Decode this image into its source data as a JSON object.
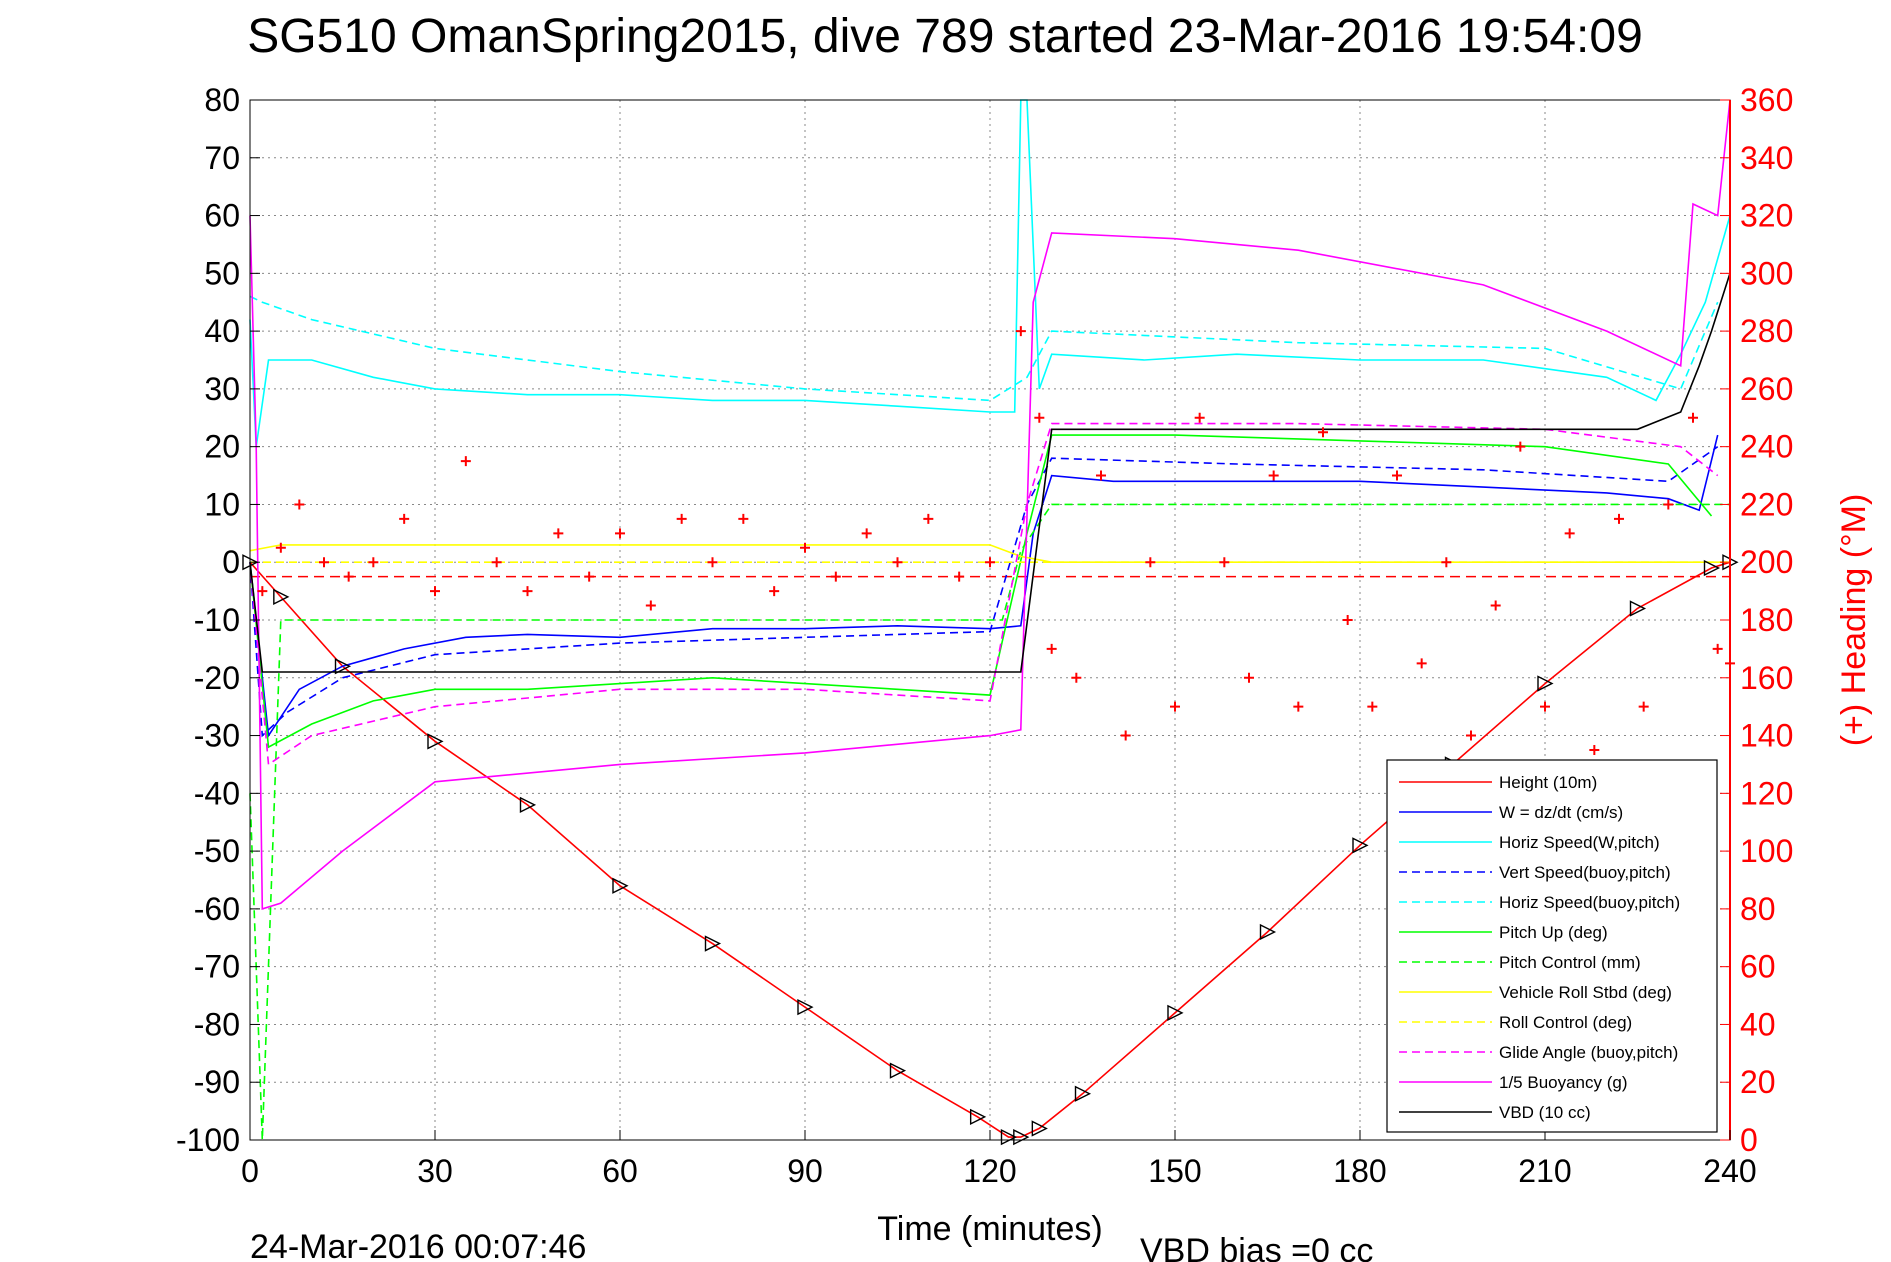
{
  "chart_data": {
    "type": "line",
    "title": "SG510 OmanSpring2015, dive 789 started 23-Mar-2016 19:54:09",
    "xlabel": "Time (minutes)",
    "ylabel": "",
    "y2label": "(+) Heading (°M)",
    "xlim": [
      0,
      240
    ],
    "ylim": [
      -100,
      80
    ],
    "y2lim": [
      0,
      360
    ],
    "x_ticks": [
      "0",
      "30",
      "60",
      "90",
      "120",
      "150",
      "180",
      "210",
      "240"
    ],
    "y_ticks": [
      "80",
      "70",
      "60",
      "50",
      "40",
      "30",
      "20",
      "10",
      "0",
      "-10",
      "-20",
      "-30",
      "-40",
      "-50",
      "-60",
      "-70",
      "-80",
      "-90",
      "-100"
    ],
    "y2_ticks": [
      "360",
      "340",
      "320",
      "300",
      "280",
      "260",
      "240",
      "220",
      "200",
      "180",
      "160",
      "140",
      "120",
      "100",
      "80",
      "60",
      "40",
      "20",
      "0"
    ],
    "grid": true,
    "legend_position": "bottom-right",
    "footer_left": "24-Mar-2016 00:07:46",
    "footer_right": "VBD bias =0 cc",
    "colors": {
      "height": "#ff0000",
      "w": "#0000ff",
      "horiz_w": "#00ffff",
      "vert_buoy": "#0000ff",
      "horiz_buoy": "#00ffff",
      "pitch_up": "#00ff00",
      "pitch_ctrl": "#00ff00",
      "roll": "#ffff00",
      "roll_ctrl": "#ffff00",
      "glide": "#ff00ff",
      "buoy": "#ff00ff",
      "vbd": "#000000",
      "heading": "#ff0000"
    },
    "series": [
      {
        "name": "Height (10m)",
        "color": "#ff0000",
        "dash": false,
        "marker": "none",
        "x": [
          0,
          5,
          15,
          30,
          45,
          60,
          75,
          90,
          105,
          118,
          123,
          125,
          128,
          135,
          150,
          165,
          180,
          195,
          210,
          225,
          237,
          240
        ],
        "y": [
          0,
          -6,
          -18,
          -31,
          -42,
          -56,
          -66,
          -77,
          -88,
          -96,
          -99.5,
          -99.5,
          -98,
          -92,
          -78,
          -64,
          -49,
          -35,
          -21,
          -8,
          -1,
          0
        ]
      },
      {
        "name": "W = dz/dt (cm/s)",
        "color": "#0000ff",
        "dash": false,
        "marker": "none",
        "x": [
          0,
          1,
          3,
          8,
          15,
          25,
          35,
          45,
          60,
          75,
          90,
          105,
          120,
          125,
          127,
          130,
          140,
          160,
          180,
          200,
          220,
          230,
          235,
          238
        ],
        "y": [
          0,
          -10,
          -30,
          -22,
          -18,
          -15,
          -13,
          -12.5,
          -13,
          -11.5,
          -11.5,
          -11,
          -11.5,
          -11,
          5,
          15,
          14,
          14,
          14,
          13,
          12,
          11,
          9,
          22
        ]
      },
      {
        "name": "Horiz Speed(W,pitch)",
        "color": "#00ffff",
        "dash": false,
        "marker": "none",
        "x": [
          0,
          1,
          3,
          10,
          20,
          30,
          45,
          60,
          75,
          90,
          105,
          120,
          124,
          125,
          126,
          128,
          130,
          145,
          160,
          180,
          200,
          220,
          228,
          232,
          236,
          240
        ],
        "y": [
          42,
          20,
          35,
          35,
          32,
          30,
          29,
          29,
          28,
          28,
          27,
          26,
          26,
          80,
          80,
          30,
          36,
          35,
          36,
          35,
          35,
          32,
          28,
          36,
          45,
          60
        ]
      },
      {
        "name": "Vert Speed(buoy,pitch)",
        "color": "#0000ff",
        "dash": true,
        "marker": "none",
        "x": [
          0,
          2,
          6,
          15,
          30,
          60,
          90,
          120,
          126,
          130,
          160,
          200,
          230,
          238
        ],
        "y": [
          0,
          -30,
          -26,
          -20,
          -16,
          -14,
          -13,
          -12,
          10,
          18,
          17,
          16,
          14,
          20
        ]
      },
      {
        "name": "Horiz Speed(buoy,pitch)",
        "color": "#00ffff",
        "dash": true,
        "marker": "none",
        "x": [
          0,
          2,
          10,
          30,
          60,
          90,
          120,
          126,
          130,
          170,
          210,
          232,
          238
        ],
        "y": [
          46,
          45,
          42,
          37,
          33,
          30,
          28,
          32,
          40,
          38,
          37,
          30,
          45
        ]
      },
      {
        "name": "Pitch Up (deg)",
        "color": "#00ff00",
        "dash": false,
        "marker": "none",
        "x": [
          0,
          3,
          10,
          20,
          30,
          45,
          60,
          75,
          90,
          105,
          120,
          126,
          130,
          150,
          180,
          210,
          230,
          237
        ],
        "y": [
          0,
          -32,
          -28,
          -24,
          -22,
          -22,
          -21,
          -20,
          -21,
          -22,
          -23,
          5,
          22,
          22,
          21,
          20,
          17,
          8
        ]
      },
      {
        "name": "Pitch Control (mm)",
        "color": "#00ff00",
        "dash": true,
        "marker": "none",
        "x": [
          0,
          1,
          2,
          5,
          120,
          122,
          125,
          130,
          240
        ],
        "y": [
          -40,
          -70,
          -100,
          -10,
          -10,
          -10,
          2,
          10,
          10
        ]
      },
      {
        "name": "Vehicle Roll Stbd (deg)",
        "color": "#ffff00",
        "dash": false,
        "marker": "none",
        "x": [
          0,
          5,
          30,
          60,
          90,
          120,
          125,
          130,
          160,
          190,
          220,
          240
        ],
        "y": [
          2,
          3,
          3,
          3,
          3,
          3,
          1,
          0,
          0,
          0,
          0,
          0
        ]
      },
      {
        "name": "Roll Control (deg)",
        "color": "#ffff00",
        "dash": true,
        "marker": "none",
        "x": [
          0,
          240
        ],
        "y": [
          0,
          0
        ]
      },
      {
        "name": "Glide Angle (buoy,pitch)",
        "color": "#ff00ff",
        "dash": true,
        "marker": "none",
        "x": [
          0,
          3,
          10,
          30,
          60,
          90,
          120,
          126,
          130,
          170,
          210,
          232,
          238
        ],
        "y": [
          0,
          -35,
          -30,
          -25,
          -22,
          -22,
          -24,
          10,
          24,
          24,
          23,
          20,
          15
        ]
      },
      {
        "name": "1/5 Buoyancy (g)",
        "color": "#ff00ff",
        "dash": false,
        "marker": "none",
        "x": [
          0,
          1,
          2,
          5,
          15,
          30,
          60,
          90,
          120,
          125,
          127,
          130,
          150,
          170,
          200,
          220,
          232,
          234,
          238,
          240
        ],
        "y": [
          60,
          20,
          -60,
          -59,
          -50,
          -38,
          -35,
          -33,
          -30,
          -29,
          45,
          57,
          56,
          54,
          48,
          40,
          34,
          62,
          60,
          80
        ]
      },
      {
        "name": "VBD (10 cc)",
        "color": "#000000",
        "dash": false,
        "marker": "none",
        "x": [
          0,
          2,
          120,
          125,
          130,
          225,
          232,
          235,
          237,
          240
        ],
        "y": [
          0,
          -19,
          -19,
          -19,
          23,
          23,
          26,
          34,
          40,
          50
        ]
      },
      {
        "name": "(+) Heading (°M)",
        "color": "#ff0000",
        "dash": false,
        "marker": "plus",
        "axis": "right",
        "x": [
          2,
          5,
          8,
          12,
          16,
          20,
          25,
          30,
          35,
          40,
          45,
          50,
          55,
          60,
          65,
          70,
          75,
          80,
          85,
          90,
          95,
          100,
          105,
          110,
          115,
          120,
          125,
          128,
          130,
          134,
          138,
          142,
          146,
          150,
          154,
          158,
          162,
          166,
          170,
          174,
          178,
          182,
          186,
          190,
          194,
          198,
          202,
          206,
          210,
          214,
          218,
          222,
          226,
          230,
          234,
          238,
          240
        ],
        "y": [
          190,
          205,
          220,
          200,
          195,
          200,
          215,
          190,
          235,
          200,
          190,
          210,
          195,
          210,
          185,
          215,
          200,
          215,
          190,
          205,
          195,
          210,
          200,
          215,
          195,
          200,
          280,
          250,
          170,
          160,
          230,
          140,
          200,
          150,
          250,
          200,
          160,
          230,
          150,
          245,
          180,
          150,
          230,
          165,
          200,
          140,
          185,
          240,
          150,
          210,
          135,
          215,
          150,
          220,
          250,
          170,
          165
        ]
      }
    ],
    "heading_ref_line": 195
  }
}
